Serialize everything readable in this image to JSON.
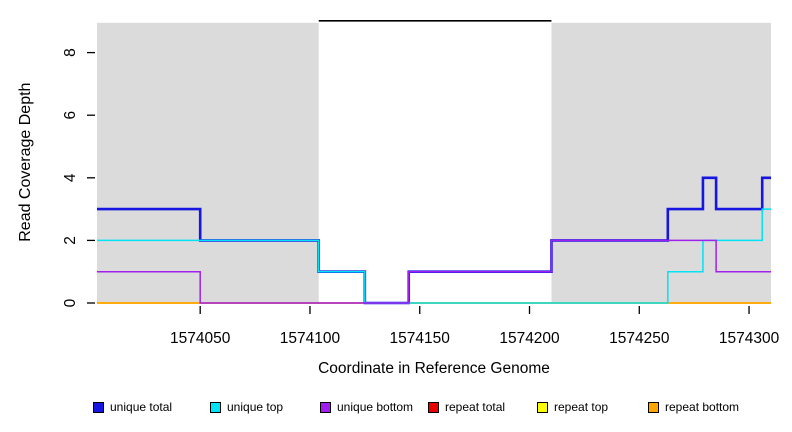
{
  "chart_data": {
    "type": "line",
    "subtype": "step-coverage",
    "title": "",
    "xlabel": "Coordinate in Reference Genome",
    "ylabel": "Read Coverage Depth",
    "xlim": [
      1574003,
      1574310
    ],
    "ylim": [
      0,
      9
    ],
    "x_ticks": [
      1574050,
      1574100,
      1574150,
      1574200,
      1574250,
      1574300
    ],
    "y_ticks": [
      0,
      2,
      4,
      6,
      8
    ],
    "grid": false,
    "legend_position": "bottom",
    "shaded_color": "#dbdbdb",
    "shaded_regions": [
      {
        "start": 1574003,
        "end": 1574104
      },
      {
        "start": 1574210,
        "end": 1574310
      }
    ],
    "feature_line": {
      "start": 1574104,
      "end": 1574210,
      "depth": 9,
      "color": "#000000"
    },
    "series": [
      {
        "name": "unique total",
        "color": "#1616e0",
        "line_width": 2.6,
        "steps": [
          [
            1574003,
            1574050,
            3
          ],
          [
            1574050,
            1574104,
            2
          ],
          [
            1574104,
            1574125,
            1
          ],
          [
            1574125,
            1574145,
            0
          ],
          [
            1574145,
            1574210,
            1
          ],
          [
            1574210,
            1574263,
            2
          ],
          [
            1574263,
            1574279,
            3
          ],
          [
            1574279,
            1574285,
            4
          ],
          [
            1574285,
            1574306,
            3
          ],
          [
            1574306,
            1574310,
            4
          ]
        ]
      },
      {
        "name": "unique top",
        "color": "#00e2f5",
        "line_width": 1.5,
        "steps": [
          [
            1574003,
            1574104,
            2
          ],
          [
            1574104,
            1574125,
            1
          ],
          [
            1574125,
            1574263,
            0
          ],
          [
            1574263,
            1574279,
            1
          ],
          [
            1574279,
            1574306,
            2
          ],
          [
            1574306,
            1574310,
            3
          ]
        ]
      },
      {
        "name": "unique bottom",
        "color": "#a020f0",
        "line_width": 1.5,
        "steps": [
          [
            1574003,
            1574050,
            1
          ],
          [
            1574050,
            1574145,
            0
          ],
          [
            1574145,
            1574210,
            1
          ],
          [
            1574210,
            1574285,
            2
          ],
          [
            1574285,
            1574310,
            1
          ]
        ]
      },
      {
        "name": "repeat total",
        "color": "#e60000",
        "line_width": 1.5,
        "steps": [
          [
            1574003,
            1574310,
            0
          ]
        ]
      },
      {
        "name": "repeat top",
        "color": "#ffff00",
        "line_width": 1.5,
        "steps": [
          [
            1574003,
            1574310,
            0
          ]
        ]
      },
      {
        "name": "repeat bottom",
        "color": "#ffa500",
        "line_width": 1.5,
        "steps": [
          [
            1574003,
            1574310,
            0
          ]
        ]
      }
    ],
    "draw_order": [
      "repeat total",
      "repeat top",
      "repeat bottom",
      "unique total",
      "unique top",
      "unique bottom"
    ]
  }
}
